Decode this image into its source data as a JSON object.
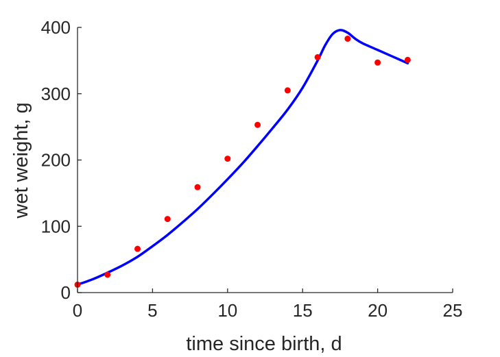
{
  "chart_data": {
    "type": "scatter",
    "title": "",
    "xlabel": "time since birth, d",
    "ylabel": "wet weight, g",
    "xlim": [
      0,
      25
    ],
    "ylim": [
      0,
      400
    ],
    "xticks": [
      0,
      5,
      10,
      15,
      20,
      25
    ],
    "yticks": [
      0,
      100,
      200,
      300,
      400
    ],
    "grid": false,
    "legend": "none",
    "series": [
      {
        "kind": "scatter",
        "color": "#ff0000",
        "x": [
          0,
          2,
          4,
          6,
          8,
          10,
          12,
          14,
          16,
          18,
          20,
          22
        ],
        "y": [
          12,
          27,
          66,
          111,
          159,
          202,
          253,
          305,
          355,
          383,
          347,
          351
        ]
      },
      {
        "kind": "line",
        "color": "#0000ff",
        "x": [
          0,
          1,
          2,
          3,
          4,
          5,
          6,
          7,
          8,
          9,
          10,
          11,
          12,
          13,
          14,
          15,
          16,
          16.5,
          17,
          17.5,
          18,
          18.5,
          19,
          20,
          21,
          22
        ],
        "y": [
          12,
          20,
          30,
          41,
          54,
          70,
          87,
          106,
          126,
          148,
          171,
          195,
          221,
          248,
          276,
          309,
          350,
          373,
          390,
          396,
          392,
          383,
          376,
          366,
          356,
          346
        ]
      }
    ]
  }
}
